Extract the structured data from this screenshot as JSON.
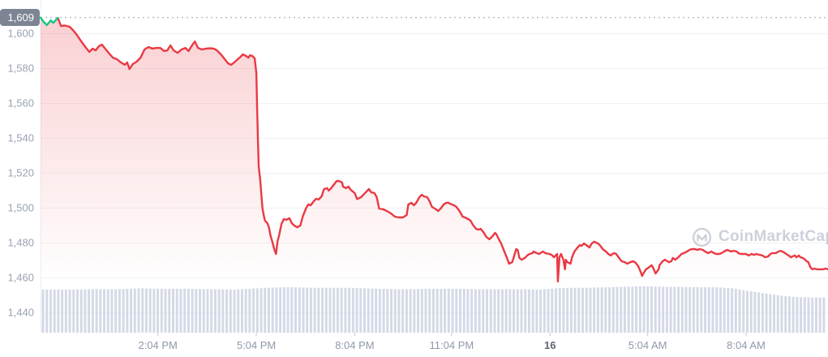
{
  "chart_data": {
    "type": "line",
    "current_value_badge": "1,609",
    "period_high": 1609,
    "watermark_text": "CoinMarketCap",
    "y_axis": {
      "tick_labels": [
        "1,600",
        "1,580",
        "1,560",
        "1,540",
        "1,520",
        "1,500",
        "1,480",
        "1,460",
        "1,440"
      ],
      "tick_values": [
        1600,
        1580,
        1560,
        1540,
        1520,
        1500,
        1480,
        1460,
        1440
      ],
      "ylim": [
        1437,
        1612
      ],
      "grid": true
    },
    "x_axis": {
      "ticks": [
        {
          "label": "2:04 PM",
          "pos": 0.149,
          "emphasis": false
        },
        {
          "label": "5:04 PM",
          "pos": 0.274,
          "emphasis": false
        },
        {
          "label": "8:04 PM",
          "pos": 0.399,
          "emphasis": false
        },
        {
          "label": "11:04 PM",
          "pos": 0.522,
          "emphasis": false
        },
        {
          "label": "16",
          "pos": 0.647,
          "emphasis": true
        },
        {
          "label": "5:04 AM",
          "pos": 0.771,
          "emphasis": false
        },
        {
          "label": "8:04 AM",
          "pos": 0.896,
          "emphasis": false
        }
      ]
    },
    "price_series": {
      "green_until_index": 5,
      "points": [
        [
          0.0,
          1609
        ],
        [
          0.004,
          1606.5
        ],
        [
          0.008,
          1604.7
        ],
        [
          0.013,
          1607.4
        ],
        [
          0.016,
          1606
        ],
        [
          0.022,
          1608.8
        ],
        [
          0.026,
          1604.2
        ],
        [
          0.031,
          1604.4
        ],
        [
          0.037,
          1603.7
        ],
        [
          0.041,
          1601.9
        ],
        [
          0.046,
          1599.1
        ],
        [
          0.051,
          1595.8
        ],
        [
          0.057,
          1592.1
        ],
        [
          0.062,
          1589.3
        ],
        [
          0.066,
          1591.2
        ],
        [
          0.07,
          1590.2
        ],
        [
          0.074,
          1592.6
        ],
        [
          0.078,
          1593.5
        ],
        [
          0.082,
          1591.2
        ],
        [
          0.087,
          1588.4
        ],
        [
          0.092,
          1586
        ],
        [
          0.097,
          1585.1
        ],
        [
          0.102,
          1583.3
        ],
        [
          0.107,
          1581.9
        ],
        [
          0.11,
          1583.3
        ],
        [
          0.113,
          1579.5
        ],
        [
          0.117,
          1582.3
        ],
        [
          0.122,
          1583.7
        ],
        [
          0.127,
          1586
        ],
        [
          0.132,
          1590.7
        ],
        [
          0.137,
          1592.1
        ],
        [
          0.142,
          1591.2
        ],
        [
          0.147,
          1591.6
        ],
        [
          0.152,
          1591.6
        ],
        [
          0.157,
          1589.8
        ],
        [
          0.161,
          1590.2
        ],
        [
          0.165,
          1593
        ],
        [
          0.169,
          1590.2
        ],
        [
          0.174,
          1588.8
        ],
        [
          0.179,
          1590.7
        ],
        [
          0.184,
          1591.6
        ],
        [
          0.188,
          1589.8
        ],
        [
          0.193,
          1593.5
        ],
        [
          0.196,
          1595.3
        ],
        [
          0.2,
          1591.6
        ],
        [
          0.205,
          1590.7
        ],
        [
          0.21,
          1591.2
        ],
        [
          0.215,
          1591.4
        ],
        [
          0.22,
          1591.2
        ],
        [
          0.224,
          1590.2
        ],
        [
          0.229,
          1587.9
        ],
        [
          0.234,
          1585.1
        ],
        [
          0.238,
          1582.8
        ],
        [
          0.242,
          1581.9
        ],
        [
          0.246,
          1583.3
        ],
        [
          0.25,
          1585
        ],
        [
          0.254,
          1586.5
        ],
        [
          0.257,
          1587.9
        ],
        [
          0.261,
          1587
        ],
        [
          0.264,
          1586
        ],
        [
          0.266,
          1587.4
        ],
        [
          0.269,
          1587
        ],
        [
          0.272,
          1585.6
        ],
        [
          0.274,
          1577.2
        ],
        [
          0.275,
          1558.6
        ],
        [
          0.276,
          1540
        ],
        [
          0.277,
          1523.7
        ],
        [
          0.278,
          1520
        ],
        [
          0.279,
          1515.8
        ],
        [
          0.28,
          1509.8
        ],
        [
          0.281,
          1503.7
        ],
        [
          0.282,
          1499.1
        ],
        [
          0.284,
          1494.4
        ],
        [
          0.285,
          1492.6
        ],
        [
          0.288,
          1491.2
        ],
        [
          0.29,
          1488.8
        ],
        [
          0.292,
          1484.2
        ],
        [
          0.295,
          1479.5
        ],
        [
          0.297,
          1475.8
        ],
        [
          0.299,
          1473.5
        ],
        [
          0.301,
          1480.9
        ],
        [
          0.303,
          1484.2
        ],
        [
          0.306,
          1490.7
        ],
        [
          0.309,
          1493.5
        ],
        [
          0.312,
          1493
        ],
        [
          0.316,
          1494
        ],
        [
          0.319,
          1491.2
        ],
        [
          0.322,
          1489.8
        ],
        [
          0.326,
          1488.8
        ],
        [
          0.33,
          1489.8
        ],
        [
          0.333,
          1494.9
        ],
        [
          0.337,
          1499.5
        ],
        [
          0.34,
          1501.9
        ],
        [
          0.343,
          1501.4
        ],
        [
          0.347,
          1503.7
        ],
        [
          0.35,
          1505.1
        ],
        [
          0.353,
          1504.7
        ],
        [
          0.357,
          1506.5
        ],
        [
          0.36,
          1510.7
        ],
        [
          0.364,
          1511.2
        ],
        [
          0.366,
          1509.8
        ],
        [
          0.369,
          1511.2
        ],
        [
          0.373,
          1513.5
        ],
        [
          0.376,
          1515.3
        ],
        [
          0.379,
          1515.3
        ],
        [
          0.383,
          1514.4
        ],
        [
          0.384,
          1512.1
        ],
        [
          0.388,
          1511.2
        ],
        [
          0.391,
          1512.1
        ],
        [
          0.394,
          1510.2
        ],
        [
          0.399,
          1508.4
        ],
        [
          0.402,
          1505
        ],
        [
          0.407,
          1506
        ],
        [
          0.412,
          1508.4
        ],
        [
          0.417,
          1510.7
        ],
        [
          0.42,
          1508.8
        ],
        [
          0.424,
          1508.4
        ],
        [
          0.427,
          1506
        ],
        [
          0.43,
          1499.5
        ],
        [
          0.435,
          1499.1
        ],
        [
          0.44,
          1498.1
        ],
        [
          0.445,
          1496.7
        ],
        [
          0.45,
          1494.9
        ],
        [
          0.455,
          1494.4
        ],
        [
          0.46,
          1494.4
        ],
        [
          0.465,
          1495.8
        ],
        [
          0.467,
          1501.9
        ],
        [
          0.471,
          1502.8
        ],
        [
          0.474,
          1501.4
        ],
        [
          0.477,
          1502.8
        ],
        [
          0.481,
          1506
        ],
        [
          0.484,
          1507.4
        ],
        [
          0.487,
          1506.5
        ],
        [
          0.491,
          1506
        ],
        [
          0.494,
          1503.7
        ],
        [
          0.497,
          1500.5
        ],
        [
          0.502,
          1499.1
        ],
        [
          0.505,
          1498.1
        ],
        [
          0.508,
          1499.5
        ],
        [
          0.512,
          1501.9
        ],
        [
          0.515,
          1502.8
        ],
        [
          0.518,
          1502.8
        ],
        [
          0.522,
          1501.9
        ],
        [
          0.525,
          1501.4
        ],
        [
          0.528,
          1500.5
        ],
        [
          0.532,
          1498.1
        ],
        [
          0.536,
          1494.9
        ],
        [
          0.539,
          1494.4
        ],
        [
          0.543,
          1493.5
        ],
        [
          0.546,
          1492.6
        ],
        [
          0.549,
          1490.2
        ],
        [
          0.553,
          1487.9
        ],
        [
          0.556,
          1487.4
        ],
        [
          0.559,
          1487.9
        ],
        [
          0.563,
          1485.6
        ],
        [
          0.566,
          1483.3
        ],
        [
          0.57,
          1481.9
        ],
        [
          0.572,
          1482.8
        ],
        [
          0.575,
          1484.2
        ],
        [
          0.577,
          1485.6
        ],
        [
          0.579,
          1484.7
        ],
        [
          0.582,
          1481.9
        ],
        [
          0.585,
          1479.5
        ],
        [
          0.589,
          1474.9
        ],
        [
          0.592,
          1471.6
        ],
        [
          0.595,
          1467.9
        ],
        [
          0.599,
          1468.8
        ],
        [
          0.6,
          1470.2
        ],
        [
          0.604,
          1476.3
        ],
        [
          0.606,
          1475.8
        ],
        [
          0.608,
          1471.2
        ],
        [
          0.611,
          1470.2
        ],
        [
          0.615,
          1471.2
        ],
        [
          0.618,
          1472.6
        ],
        [
          0.621,
          1473.5
        ],
        [
          0.625,
          1474
        ],
        [
          0.626,
          1474.9
        ],
        [
          0.63,
          1474
        ],
        [
          0.633,
          1473.5
        ],
        [
          0.635,
          1474
        ],
        [
          0.638,
          1474.9
        ],
        [
          0.641,
          1474
        ],
        [
          0.646,
          1473.5
        ],
        [
          0.649,
          1473
        ],
        [
          0.652,
          1471.6
        ],
        [
          0.656,
          1473.5
        ],
        [
          0.657,
          1457.7
        ],
        [
          0.659,
          1471.6
        ],
        [
          0.661,
          1473.5
        ],
        [
          0.664,
          1470.2
        ],
        [
          0.666,
          1464.7
        ],
        [
          0.667,
          1470.2
        ],
        [
          0.669,
          1468.8
        ],
        [
          0.673,
          1467.9
        ],
        [
          0.675,
          1471.6
        ],
        [
          0.678,
          1474.9
        ],
        [
          0.682,
          1477.2
        ],
        [
          0.685,
          1478.6
        ],
        [
          0.687,
          1478.1
        ],
        [
          0.69,
          1479.5
        ],
        [
          0.693,
          1478.6
        ],
        [
          0.697,
          1477.2
        ],
        [
          0.7,
          1479.5
        ],
        [
          0.703,
          1480.5
        ],
        [
          0.708,
          1479.5
        ],
        [
          0.711,
          1478.1
        ],
        [
          0.714,
          1476.3
        ],
        [
          0.718,
          1474.9
        ],
        [
          0.721,
          1473.5
        ],
        [
          0.724,
          1472.6
        ],
        [
          0.728,
          1474
        ],
        [
          0.731,
          1473.5
        ],
        [
          0.734,
          1471.6
        ],
        [
          0.738,
          1469.3
        ],
        [
          0.742,
          1468.8
        ],
        [
          0.745,
          1467.9
        ],
        [
          0.749,
          1468.8
        ],
        [
          0.752,
          1469.3
        ],
        [
          0.755,
          1468.8
        ],
        [
          0.759,
          1466.5
        ],
        [
          0.762,
          1463.3
        ],
        [
          0.764,
          1460.9
        ],
        [
          0.765,
          1461.9
        ],
        [
          0.769,
          1464.7
        ],
        [
          0.772,
          1465.6
        ],
        [
          0.776,
          1467
        ],
        [
          0.778,
          1465.6
        ],
        [
          0.78,
          1463.3
        ],
        [
          0.781,
          1462.3
        ],
        [
          0.785,
          1464.7
        ],
        [
          0.786,
          1467
        ],
        [
          0.79,
          1469.3
        ],
        [
          0.793,
          1470.2
        ],
        [
          0.796,
          1469.3
        ],
        [
          0.798,
          1468.8
        ],
        [
          0.801,
          1469.3
        ],
        [
          0.803,
          1471.2
        ],
        [
          0.806,
          1470.2
        ],
        [
          0.81,
          1471.6
        ],
        [
          0.814,
          1473.5
        ],
        [
          0.817,
          1474
        ],
        [
          0.821,
          1474.9
        ],
        [
          0.824,
          1475.8
        ],
        [
          0.827,
          1476.3
        ],
        [
          0.831,
          1476.3
        ],
        [
          0.834,
          1475.8
        ],
        [
          0.837,
          1476.3
        ],
        [
          0.841,
          1475.8
        ],
        [
          0.844,
          1474.9
        ],
        [
          0.848,
          1474
        ],
        [
          0.852,
          1474.9
        ],
        [
          0.855,
          1474
        ],
        [
          0.858,
          1473.5
        ],
        [
          0.862,
          1473.5
        ],
        [
          0.865,
          1474
        ],
        [
          0.868,
          1474.9
        ],
        [
          0.872,
          1475.8
        ],
        [
          0.877,
          1474.9
        ],
        [
          0.88,
          1475.3
        ],
        [
          0.884,
          1474.9
        ],
        [
          0.886,
          1474
        ],
        [
          0.889,
          1473.5
        ],
        [
          0.893,
          1473.5
        ],
        [
          0.896,
          1473.5
        ],
        [
          0.899,
          1472.6
        ],
        [
          0.903,
          1473.5
        ],
        [
          0.906,
          1473
        ],
        [
          0.909,
          1473.5
        ],
        [
          0.913,
          1473
        ],
        [
          0.917,
          1472.6
        ],
        [
          0.92,
          1471.6
        ],
        [
          0.924,
          1472.1
        ],
        [
          0.927,
          1473.5
        ],
        [
          0.929,
          1474
        ],
        [
          0.934,
          1474
        ],
        [
          0.937,
          1474.9
        ],
        [
          0.94,
          1475.3
        ],
        [
          0.944,
          1474.4
        ],
        [
          0.947,
          1473.5
        ],
        [
          0.95,
          1472.6
        ],
        [
          0.953,
          1471.6
        ],
        [
          0.955,
          1472.1
        ],
        [
          0.958,
          1472.6
        ],
        [
          0.96,
          1471.6
        ],
        [
          0.963,
          1472.6
        ],
        [
          0.965,
          1471.6
        ],
        [
          0.968,
          1471.2
        ],
        [
          0.971,
          1470.2
        ],
        [
          0.973,
          1469.3
        ],
        [
          0.975,
          1468.8
        ],
        [
          0.978,
          1465.6
        ],
        [
          0.98,
          1464.7
        ],
        [
          0.983,
          1465.1
        ],
        [
          0.986,
          1464.7
        ],
        [
          0.991,
          1464.7
        ],
        [
          0.994,
          1464.7
        ],
        [
          0.997,
          1465.1
        ],
        [
          1.0,
          1464.7
        ]
      ]
    },
    "volume_series": {
      "relative_heights": [
        0.93,
        0.93,
        0.93,
        0.94,
        0.94,
        0.94,
        0.96,
        0.95,
        0.95,
        0.95,
        0.94,
        0.94,
        0.93,
        0.95,
        0.97,
        0.98,
        0.98,
        0.97,
        0.97,
        0.97,
        0.96,
        0.95,
        0.94,
        0.94,
        0.95,
        0.95,
        0.95,
        0.94,
        0.94,
        0.94,
        0.94,
        0.93,
        0.96,
        0.97,
        0.97,
        0.98,
        0.99,
        1.0,
        1.0,
        0.99,
        0.99,
        0.98,
        0.98,
        0.96,
        0.9,
        0.85,
        0.8,
        0.77,
        0.76,
        0.76
      ]
    },
    "colors": {
      "up": "#16c784",
      "down": "#ea3943",
      "fill_top": "rgba(234,57,67,0.24)",
      "fill_bottom": "rgba(234,57,67,0)",
      "volume": "#d4d9e6",
      "grid": "#f0f1f6",
      "axis_line": "#eceef3",
      "tick": "#c2c8d3",
      "dotted_high_line": "#b8bfcb",
      "y_label": "#99a1b3",
      "x_label": "#8f98aa",
      "x_label_emphasis": "#5d6574",
      "badge_bg": "#7d8594",
      "badge_text": "#ffffff",
      "watermark": "#9ba3b6"
    }
  }
}
